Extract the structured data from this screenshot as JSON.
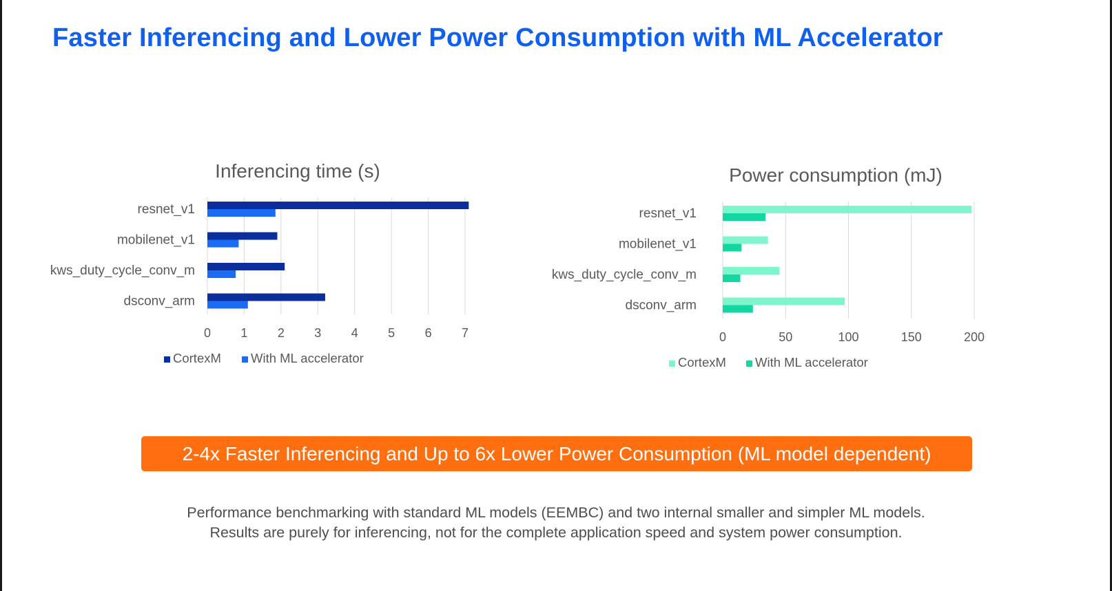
{
  "slide": {
    "title": "Faster Inferencing and Lower Power Consumption with ML Accelerator",
    "banner": "2-4x Faster Inferencing and Up to 6x Lower Power Consumption (ML model dependent)",
    "notes": [
      "Performance benchmarking with standard ML models (EEMBC) and two internal smaller and simpler ML models.",
      "Results are purely for inferencing, not for the complete application speed and system power consumption."
    ]
  },
  "chart_data": [
    {
      "type": "bar",
      "orientation": "horizontal",
      "title": "Inferencing time (s)",
      "xlabel": "",
      "ylabel": "",
      "categories": [
        "resnet_v1",
        "mobilenet_v1",
        "kws_duty_cycle_conv_m",
        "dsconv_arm"
      ],
      "series": [
        {
          "name": "CortexM",
          "values": [
            7.1,
            1.9,
            2.1,
            3.2
          ],
          "color": "#0a2f9c"
        },
        {
          "name": "With ML accelerator",
          "values": [
            1.85,
            0.85,
            0.77,
            1.1
          ],
          "color": "#1a6cf5"
        }
      ],
      "xlim": [
        0,
        7
      ],
      "ticks": [
        0,
        1,
        2,
        3,
        4,
        5,
        6,
        7
      ],
      "grid": "vertical",
      "legend": "bottom"
    },
    {
      "type": "bar",
      "orientation": "horizontal",
      "title": "Power consumption (mJ)",
      "xlabel": "",
      "ylabel": "",
      "categories": [
        "resnet_v1",
        "mobilenet_v1",
        "kws_duty_cycle_conv_m",
        "dsconv_arm"
      ],
      "series": [
        {
          "name": "CortexM",
          "values": [
            198,
            36,
            45,
            97
          ],
          "color": "#7ff5cc"
        },
        {
          "name": "With ML accelerator",
          "values": [
            34,
            15,
            14,
            24
          ],
          "color": "#14d6a0"
        }
      ],
      "xlim": [
        0,
        200
      ],
      "ticks": [
        0,
        50,
        100,
        150,
        200
      ],
      "grid": "vertical",
      "legend": "bottom"
    }
  ]
}
